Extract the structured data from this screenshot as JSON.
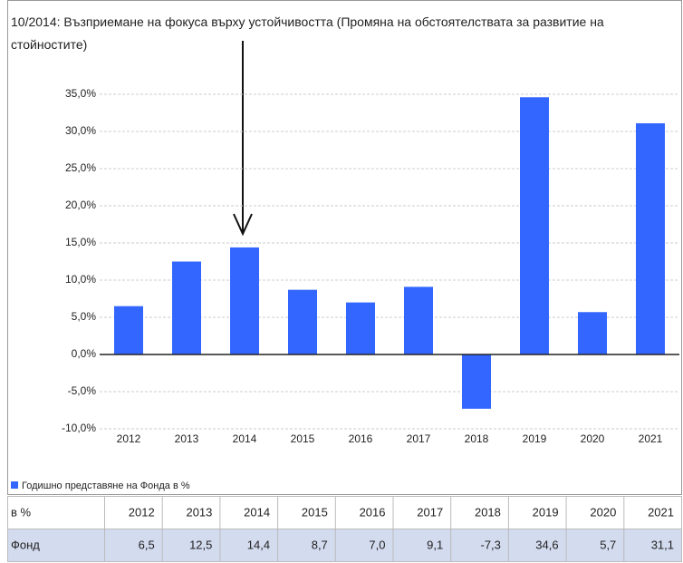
{
  "chart_data": {
    "type": "bar",
    "title": "10/2014: Възприемане на фокуса върху устойчивостта (Промяна на обстоятелствата за развитие на стойностите)",
    "categories": [
      "2012",
      "2013",
      "2014",
      "2015",
      "2016",
      "2017",
      "2018",
      "2019",
      "2020",
      "2021"
    ],
    "series": [
      {
        "name": "Годишно представяне на Фонда в %",
        "color": "#3366ff",
        "values": [
          6.5,
          12.5,
          14.4,
          8.7,
          7.0,
          9.1,
          -7.3,
          34.6,
          5.7,
          31.1
        ],
        "value_labels": [
          "6,5",
          "12,5",
          "14,4",
          "8,7",
          "7,0",
          "9,1",
          "-7,3",
          "34,6",
          "5,7",
          "31,1"
        ]
      }
    ],
    "ylim": [
      -10,
      35
    ],
    "yticks": [
      {
        "value": -10,
        "label": "-10,0%"
      },
      {
        "value": -5,
        "label": "-5,0%"
      },
      {
        "value": 0,
        "label": "0,0%"
      },
      {
        "value": 5,
        "label": "5,0%"
      },
      {
        "value": 10,
        "label": "10,0%"
      },
      {
        "value": 15,
        "label": "15,0%"
      },
      {
        "value": 20,
        "label": "20,0%"
      },
      {
        "value": 25,
        "label": "25,0%"
      },
      {
        "value": 30,
        "label": "30,0%"
      },
      {
        "value": 35,
        "label": "35,0%"
      }
    ],
    "grid": true,
    "table": {
      "header": "в %",
      "row_label": "Фонд"
    }
  }
}
